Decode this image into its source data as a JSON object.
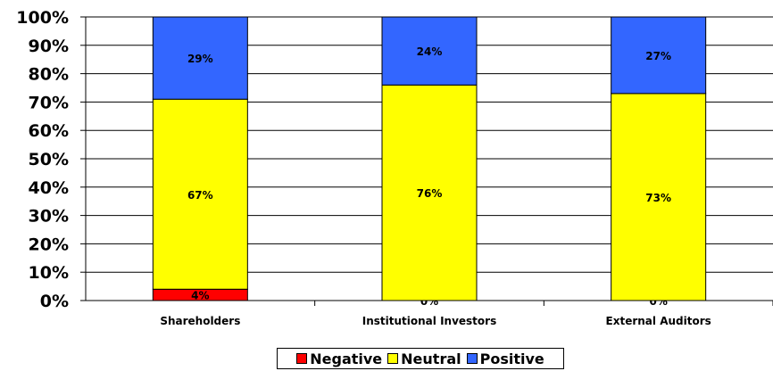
{
  "chart_data": {
    "type": "bar",
    "stacked": true,
    "categories": [
      "Shareholders",
      "Institutional Investors",
      "External Auditors"
    ],
    "series": [
      {
        "name": "Negative",
        "color": "#ff0000",
        "values": [
          4,
          0,
          0
        ],
        "labels": [
          "4%",
          "0%",
          "0%"
        ]
      },
      {
        "name": "Neutral",
        "color": "#ffff00",
        "values": [
          67,
          76,
          73
        ],
        "labels": [
          "67%",
          "76%",
          "73%"
        ]
      },
      {
        "name": "Positive",
        "color": "#3366ff",
        "values": [
          29,
          24,
          27
        ],
        "labels": [
          "29%",
          "24%",
          "27%"
        ]
      }
    ],
    "ylim": [
      0,
      100
    ],
    "yticks": [
      "0%",
      "10%",
      "20%",
      "30%",
      "40%",
      "50%",
      "60%",
      "70%",
      "80%",
      "90%",
      "100%"
    ],
    "grid": true,
    "legend_position": "bottom"
  }
}
